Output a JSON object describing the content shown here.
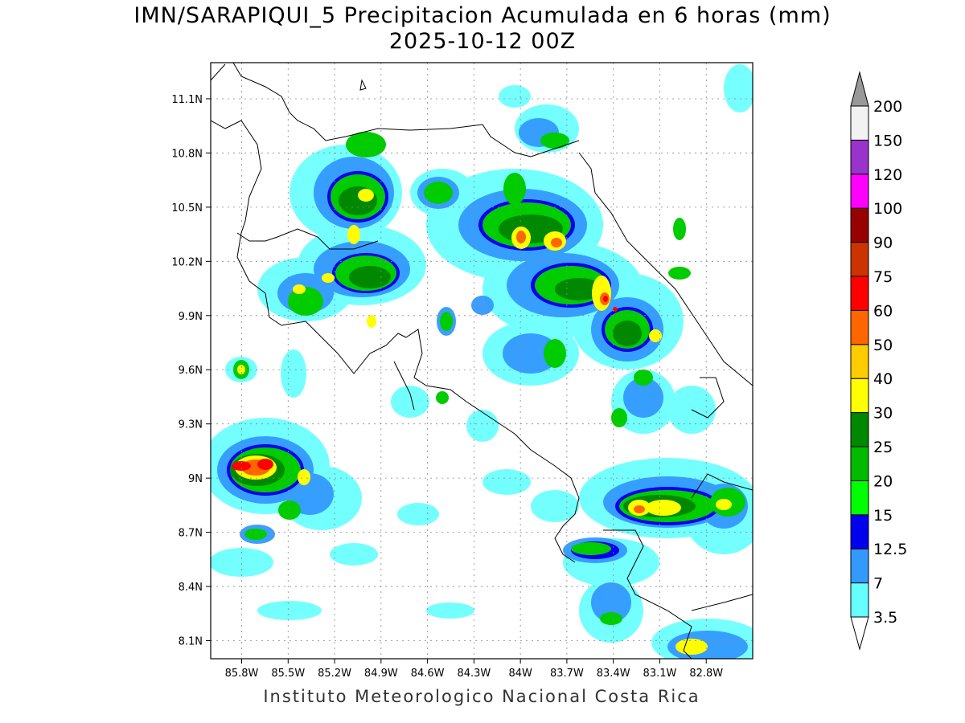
{
  "title": "IMN/SARAPIQUI_5 Precipitacion Acumulada en 6 horas (mm)",
  "subtitle": "2025-10-12 00Z",
  "footer": "Instituto Meteorologico Nacional Costa Rica",
  "map": {
    "lon_range": [
      -86.0,
      -82.5
    ],
    "lat_range": [
      8.0,
      11.3
    ],
    "lat_ticks": [
      {
        "value": 11.1,
        "label": "11.1N"
      },
      {
        "value": 10.8,
        "label": "10.8N"
      },
      {
        "value": 10.5,
        "label": "10.5N"
      },
      {
        "value": 10.2,
        "label": "10.2N"
      },
      {
        "value": 9.9,
        "label": "9.9N"
      },
      {
        "value": 9.6,
        "label": "9.6N"
      },
      {
        "value": 9.3,
        "label": "9.3N"
      },
      {
        "value": 9.0,
        "label": "9N"
      },
      {
        "value": 8.7,
        "label": "8.7N"
      },
      {
        "value": 8.4,
        "label": "8.4N"
      },
      {
        "value": 8.1,
        "label": "8.1N"
      }
    ],
    "lon_ticks": [
      {
        "value": -85.8,
        "label": "85.8W"
      },
      {
        "value": -85.5,
        "label": "85.5W"
      },
      {
        "value": -85.2,
        "label": "85.2W"
      },
      {
        "value": -84.9,
        "label": "84.9W"
      },
      {
        "value": -84.6,
        "label": "84.6W"
      },
      {
        "value": -84.3,
        "label": "84.3W"
      },
      {
        "value": -84.0,
        "label": "84W"
      },
      {
        "value": -83.7,
        "label": "83.7W"
      },
      {
        "value": -83.4,
        "label": "83.4W"
      },
      {
        "value": -83.1,
        "label": "83.1W"
      },
      {
        "value": -82.8,
        "label": "82.8W"
      }
    ],
    "grid": true
  },
  "legend": {
    "levels": [
      {
        "label": "3.5",
        "color": "#66ffff"
      },
      {
        "label": "7",
        "color": "#3399ff"
      },
      {
        "label": "12.5",
        "color": "#0000ee"
      },
      {
        "label": "15",
        "color": "#00ff00"
      },
      {
        "label": "20",
        "color": "#00bb00"
      },
      {
        "label": "25",
        "color": "#008800"
      },
      {
        "label": "30",
        "color": "#ffff00"
      },
      {
        "label": "40",
        "color": "#ffcc00"
      },
      {
        "label": "50",
        "color": "#ff6600"
      },
      {
        "label": "60",
        "color": "#ff0000"
      },
      {
        "label": "75",
        "color": "#cc3300"
      },
      {
        "label": "90",
        "color": "#990000"
      },
      {
        "label": "100",
        "color": "#ff00ff"
      },
      {
        "label": "120",
        "color": "#9933cc"
      },
      {
        "label": "150",
        "color": "#f2f2f2"
      },
      {
        "label": "200",
        "color": "#999999"
      }
    ]
  },
  "precip_cells": [
    {
      "lon": -85.78,
      "lat": 9.04,
      "level": 9
    },
    {
      "lon": -85.6,
      "lat": 9.06,
      "level": 9
    },
    {
      "lon": -85.45,
      "lat": 9.0,
      "level": 8
    },
    {
      "lon": -84.05,
      "lat": 10.38,
      "level": 9
    },
    {
      "lon": -83.83,
      "lat": 10.3,
      "level": 9
    },
    {
      "lon": -83.38,
      "lat": 10.0,
      "level": 9
    },
    {
      "lon": -83.32,
      "lat": 9.95,
      "level": 8
    },
    {
      "lon": -83.45,
      "lat": 8.85,
      "level": 8
    },
    {
      "lon": -83.2,
      "lat": 8.85,
      "level": 7
    },
    {
      "lon": -82.9,
      "lat": 8.9,
      "level": 7
    },
    {
      "lon": -84.9,
      "lat": 10.38,
      "level": 6
    },
    {
      "lon": -85.1,
      "lat": 10.1,
      "level": 6
    },
    {
      "lon": -84.95,
      "lat": 10.6,
      "level": 6
    },
    {
      "lon": -83.6,
      "lat": 10.2,
      "level": 6
    },
    {
      "lon": -83.1,
      "lat": 9.8,
      "level": 6
    },
    {
      "lon": -83.75,
      "lat": 8.62,
      "level": 6
    },
    {
      "lon": -83.0,
      "lat": 9.4,
      "level": 5
    },
    {
      "lon": -85.3,
      "lat": 10.05,
      "level": 5
    },
    {
      "lon": -85.5,
      "lat": 9.3,
      "level": 5
    },
    {
      "lon": -82.7,
      "lat": 8.05,
      "level": 7
    }
  ]
}
